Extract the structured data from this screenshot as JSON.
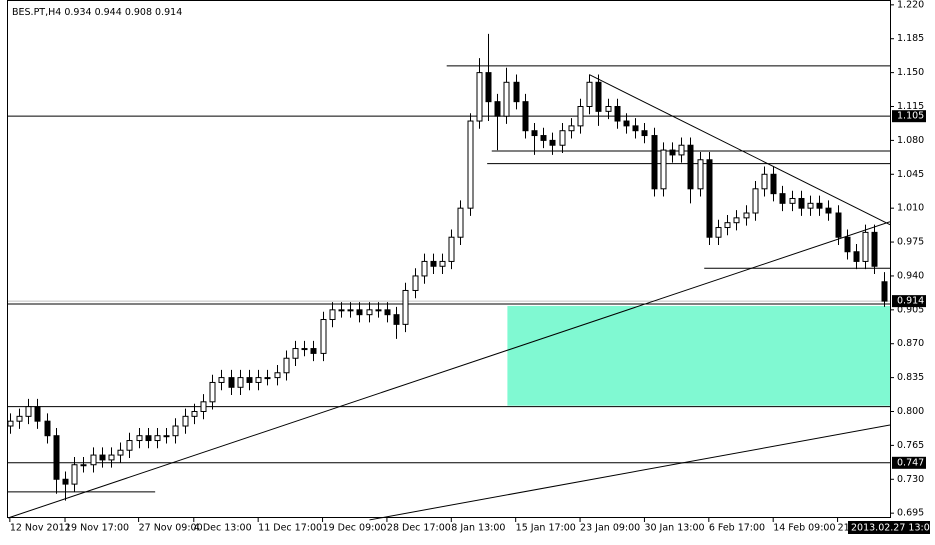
{
  "chart_data": {
    "type": "candlestick",
    "header": {
      "symbol": "BES.PT,H4",
      "values": [
        0.934,
        0.944,
        0.908,
        0.914
      ]
    },
    "xlim": [
      -0.2,
      95.7
    ],
    "ylim": [
      0.69,
      1.225
    ],
    "yticks": [
      {
        "value": 1.22,
        "label": "1.220"
      },
      1.185,
      {
        "value": 1.15,
        "label": "1.150"
      },
      1.115,
      {
        "value": 1.08,
        "label": "1.080"
      },
      1.045,
      {
        "value": 1.01,
        "label": "1.010"
      },
      0.975,
      {
        "value": 0.94,
        "label": "0.940"
      },
      0.905,
      {
        "value": 0.87,
        "label": "0.870"
      },
      0.835,
      {
        "value": 0.8,
        "label": "0.800"
      },
      0.765,
      {
        "value": 0.73,
        "label": "0.730"
      },
      0.695
    ],
    "xticks": [
      {
        "value": 0,
        "label": "12 Nov 2012"
      },
      {
        "value": 6,
        "label": "19 Nov 17:00"
      },
      {
        "value": 14,
        "label": "27 Nov 09:00"
      },
      {
        "value": 20,
        "label": "4 Dec 13:00"
      },
      {
        "value": 27,
        "label": "11 Dec 17:00"
      },
      {
        "value": 34,
        "label": "19 Dec 09:00"
      },
      {
        "value": 41,
        "label": "28 Dec 17:00"
      },
      {
        "value": 48,
        "label": "8 Jan 13:00"
      },
      {
        "value": 55,
        "label": "15 Jan 17:00"
      },
      {
        "value": 62,
        "label": "23 Jan 09:00"
      },
      {
        "value": 69,
        "label": "30 Jan 13:00"
      },
      {
        "value": 76,
        "label": "6 Feb 17:00"
      },
      {
        "value": 83,
        "label": "14 Feb 09:00"
      },
      {
        "value": 90,
        "label": "21"
      }
    ],
    "cursor_time_label": "2013.02.27 13:00",
    "open": [
      0.785,
      0.79,
      0.795,
      0.805,
      0.79,
      0.775,
      0.73,
      0.725,
      0.745,
      0.745,
      0.755,
      0.75,
      0.755,
      0.76,
      0.77,
      0.775,
      0.77,
      0.775,
      0.775,
      0.785,
      0.795,
      0.8,
      0.81,
      0.83,
      0.835,
      0.825,
      0.835,
      0.83,
      0.835,
      0.835,
      0.84,
      0.855,
      0.865,
      0.865,
      0.86,
      0.895,
      0.905,
      0.905,
      0.905,
      0.9,
      0.905,
      0.905,
      0.9,
      0.89,
      0.925,
      0.94,
      0.955,
      0.95,
      0.955,
      0.98,
      1.01,
      1.1,
      1.15,
      1.12,
      1.105,
      1.14,
      1.12,
      1.09,
      1.085,
      1.08,
      1.075,
      1.09,
      1.095,
      1.115,
      1.14,
      1.11,
      1.115,
      1.1,
      1.095,
      1.09,
      1.085,
      1.03,
      1.07,
      1.065,
      1.075,
      1.03,
      1.06,
      0.98,
      0.99,
      0.995,
      1.0,
      1.005,
      1.03,
      1.045,
      1.025,
      1.015,
      1.02,
      1.01,
      1.015,
      1.01,
      1.005,
      0.98,
      0.965,
      0.955,
      0.985,
      0.934
    ],
    "high": [
      0.798,
      0.803,
      0.813,
      0.813,
      0.798,
      0.783,
      0.738,
      0.753,
      0.753,
      0.763,
      0.763,
      0.763,
      0.768,
      0.778,
      0.783,
      0.783,
      0.783,
      0.783,
      0.793,
      0.803,
      0.808,
      0.818,
      0.838,
      0.843,
      0.843,
      0.843,
      0.843,
      0.843,
      0.843,
      0.848,
      0.863,
      0.873,
      0.873,
      0.873,
      0.903,
      0.913,
      0.913,
      0.913,
      0.913,
      0.913,
      0.913,
      0.913,
      0.908,
      0.933,
      0.948,
      0.963,
      0.963,
      0.963,
      0.988,
      1.018,
      1.108,
      1.165,
      1.19,
      1.128,
      1.155,
      1.148,
      1.128,
      1.098,
      1.093,
      1.088,
      1.098,
      1.103,
      1.123,
      1.148,
      1.148,
      1.123,
      1.123,
      1.108,
      1.103,
      1.098,
      1.093,
      1.078,
      1.078,
      1.083,
      1.083,
      1.068,
      1.068,
      0.998,
      1.003,
      1.008,
      1.013,
      1.038,
      1.053,
      1.053,
      1.033,
      1.028,
      1.028,
      1.023,
      1.023,
      1.018,
      1.013,
      0.988,
      0.973,
      0.993,
      0.993,
      0.944
    ],
    "low": [
      0.777,
      0.782,
      0.787,
      0.782,
      0.767,
      0.715,
      0.708,
      0.717,
      0.737,
      0.737,
      0.742,
      0.742,
      0.747,
      0.752,
      0.762,
      0.762,
      0.762,
      0.767,
      0.767,
      0.777,
      0.787,
      0.792,
      0.802,
      0.822,
      0.817,
      0.817,
      0.822,
      0.822,
      0.827,
      0.827,
      0.832,
      0.847,
      0.857,
      0.852,
      0.852,
      0.887,
      0.897,
      0.897,
      0.892,
      0.892,
      0.897,
      0.892,
      0.875,
      0.882,
      0.917,
      0.932,
      0.942,
      0.942,
      0.947,
      0.972,
      1.002,
      1.092,
      1.1,
      1.07,
      1.097,
      1.112,
      1.082,
      1.065,
      1.072,
      1.065,
      1.067,
      1.082,
      1.087,
      1.107,
      1.095,
      1.102,
      1.092,
      1.087,
      1.082,
      1.077,
      1.022,
      1.022,
      1.057,
      1.057,
      1.015,
      1.022,
      0.972,
      0.972,
      0.982,
      0.987,
      0.992,
      0.997,
      1.022,
      1.017,
      1.007,
      1.007,
      1.002,
      1.002,
      1.002,
      0.997,
      0.972,
      0.957,
      0.947,
      0.947,
      0.942,
      0.908
    ],
    "close": [
      0.79,
      0.795,
      0.805,
      0.79,
      0.775,
      0.73,
      0.725,
      0.745,
      0.745,
      0.755,
      0.75,
      0.755,
      0.76,
      0.77,
      0.775,
      0.77,
      0.775,
      0.775,
      0.785,
      0.795,
      0.8,
      0.81,
      0.83,
      0.835,
      0.825,
      0.835,
      0.83,
      0.835,
      0.835,
      0.84,
      0.855,
      0.865,
      0.865,
      0.86,
      0.895,
      0.905,
      0.905,
      0.905,
      0.9,
      0.905,
      0.905,
      0.9,
      0.89,
      0.925,
      0.94,
      0.955,
      0.95,
      0.955,
      0.98,
      1.01,
      1.1,
      1.15,
      1.12,
      1.105,
      1.14,
      1.12,
      1.09,
      1.085,
      1.08,
      1.075,
      1.09,
      1.095,
      1.115,
      1.14,
      1.11,
      1.115,
      1.1,
      1.095,
      1.09,
      1.085,
      1.03,
      1.07,
      1.065,
      1.075,
      1.03,
      1.06,
      0.98,
      0.99,
      0.995,
      1.0,
      1.005,
      1.03,
      1.045,
      1.025,
      1.015,
      1.02,
      1.01,
      1.015,
      1.01,
      1.005,
      0.98,
      0.965,
      0.955,
      0.985,
      0.95,
      0.914
    ],
    "hsegments": [
      {
        "y": 1.105,
        "x": [
          -0.2,
          95.7
        ]
      },
      {
        "y": 0.911,
        "x": [
          -0.2,
          95.7
        ]
      },
      {
        "y": 0.805,
        "x": [
          -0.2,
          95.7
        ]
      },
      {
        "y": 0.747,
        "x": [
          -0.2,
          95.7
        ]
      },
      {
        "y": 1.157,
        "x": [
          47.5,
          95.7
        ]
      },
      {
        "y": 1.069,
        "x": [
          52.4,
          95.7
        ]
      },
      {
        "y": 1.056,
        "x": [
          51.9,
          95.7
        ]
      },
      {
        "y": 0.948,
        "x": [
          75.5,
          95.7
        ]
      },
      {
        "y": 0.717,
        "x": [
          -0.2,
          15.8
        ]
      }
    ],
    "trendlines": [
      {
        "x": [
          -0.2,
          95.7
        ],
        "y": [
          0.69,
          0.996
        ]
      },
      {
        "x": [
          39.1,
          95.7
        ],
        "y": [
          0.688,
          0.786
        ]
      },
      {
        "x": [
          63,
          95.7
        ],
        "y": [
          1.148,
          0.993
        ]
      }
    ],
    "zone": {
      "x": [
        54.1,
        95.7
      ],
      "y": [
        0.806,
        0.909
      ],
      "color": "#80f9d2"
    },
    "price_tags": [
      1.105,
      0.914,
      0.747
    ],
    "current_price_line_color": "#c0c0c0"
  }
}
